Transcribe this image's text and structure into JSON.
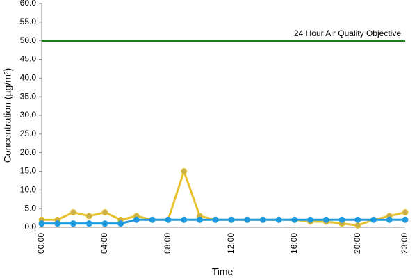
{
  "chart_data": {
    "type": "line",
    "x_label": "Time",
    "y_label": "Concentration (µg/m³)",
    "categories": [
      "00:00",
      null,
      null,
      null,
      "04:00",
      null,
      null,
      null,
      "08:00",
      null,
      null,
      null,
      "12:00",
      null,
      null,
      null,
      "16:00",
      null,
      null,
      null,
      "20:00",
      null,
      null,
      "23:00"
    ],
    "series": [
      {
        "color": "#e8c12e",
        "marker_color": "#c9b04a",
        "values": [
          2,
          2,
          4,
          3,
          4,
          2,
          3,
          2,
          2,
          15,
          3,
          2,
          2,
          2,
          2,
          2,
          2,
          1.5,
          1.5,
          1,
          0.5,
          2,
          3,
          4
        ]
      },
      {
        "color": "#1e9be0",
        "marker_color": "#1e9be0",
        "values": [
          1,
          1,
          1,
          1,
          1,
          1,
          2,
          2,
          2,
          2,
          2,
          2,
          2,
          2,
          2,
          2,
          2,
          2,
          2,
          2,
          2,
          2,
          2,
          2
        ]
      }
    ],
    "objective": {
      "label": "24 Hour Air Quality Objective",
      "value": 50,
      "color": "#1e7b1e"
    },
    "ylim": [
      0,
      60
    ],
    "yticks": [
      {
        "value": 0,
        "label": "0.0"
      },
      {
        "value": 5,
        "label": "5.0"
      },
      {
        "value": 10,
        "label": "10.0"
      },
      {
        "value": 15,
        "label": "15.0"
      },
      {
        "value": 20,
        "label": "20.0"
      },
      {
        "value": 25,
        "label": "25.0"
      },
      {
        "value": 30,
        "label": "30.0"
      },
      {
        "value": 35,
        "label": "35.0"
      },
      {
        "value": 40,
        "label": "40.0"
      },
      {
        "value": 45,
        "label": "45.0"
      },
      {
        "value": 50,
        "label": "50.0"
      },
      {
        "value": 55,
        "label": "55.0"
      },
      {
        "value": 60,
        "label": "60.0"
      }
    ],
    "grid": false
  }
}
